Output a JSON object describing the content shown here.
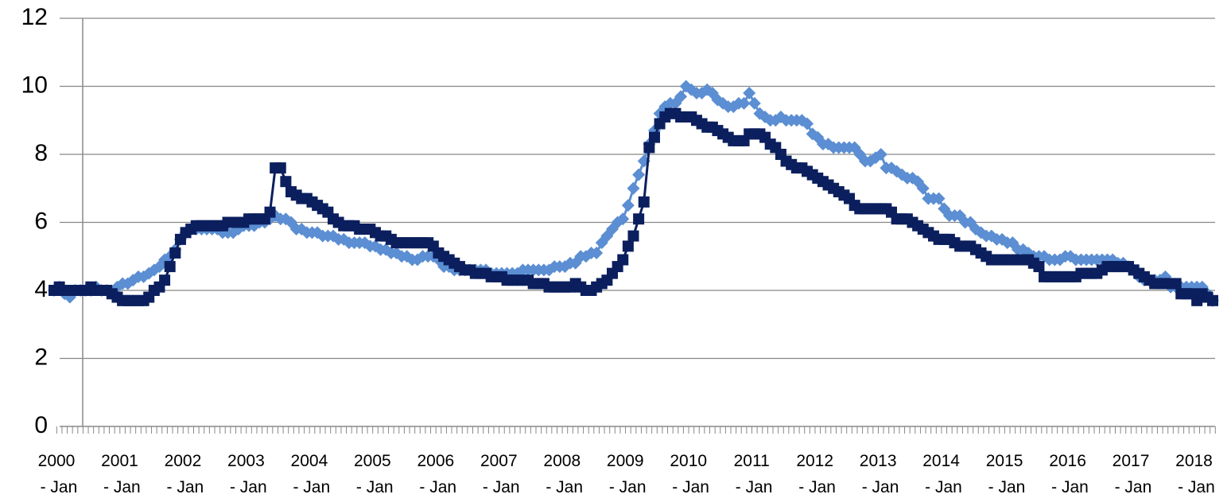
{
  "chart_data": {
    "type": "line",
    "categories": [
      "2000 - Jan",
      null,
      null,
      null,
      null,
      null,
      null,
      null,
      null,
      null,
      null,
      null,
      "2001 - Jan",
      null,
      null,
      null,
      null,
      null,
      null,
      null,
      null,
      null,
      null,
      null,
      "2002 - Jan",
      null,
      null,
      null,
      null,
      null,
      null,
      null,
      null,
      null,
      null,
      null,
      "2003 - Jan",
      null,
      null,
      null,
      null,
      null,
      null,
      null,
      null,
      null,
      null,
      null,
      "2004 - Jan",
      null,
      null,
      null,
      null,
      null,
      null,
      null,
      null,
      null,
      null,
      null,
      "2005 - Jan",
      null,
      null,
      null,
      null,
      null,
      null,
      null,
      null,
      null,
      null,
      null,
      "2006 - Jan",
      null,
      null,
      null,
      null,
      null,
      null,
      null,
      null,
      null,
      null,
      null,
      "2007 - Jan",
      null,
      null,
      null,
      null,
      null,
      null,
      null,
      null,
      null,
      null,
      null,
      "2008 - Jan",
      null,
      null,
      null,
      null,
      null,
      null,
      null,
      null,
      null,
      null,
      null,
      "2009 - Jan",
      null,
      null,
      null,
      null,
      null,
      null,
      null,
      null,
      null,
      null,
      null,
      "2010 - Jan",
      null,
      null,
      null,
      null,
      null,
      null,
      null,
      null,
      null,
      null,
      null,
      "2011 - Jan",
      null,
      null,
      null,
      null,
      null,
      null,
      null,
      null,
      null,
      null,
      null,
      "2012 - Jan",
      null,
      null,
      null,
      null,
      null,
      null,
      null,
      null,
      null,
      null,
      null,
      "2013 - Jan",
      null,
      null,
      null,
      null,
      null,
      null,
      null,
      null,
      null,
      null,
      null,
      "2014 - Jan",
      null,
      null,
      null,
      null,
      null,
      null,
      null,
      null,
      null,
      null,
      null,
      "2015 - Jan",
      null,
      null,
      null,
      null,
      null,
      null,
      null,
      null,
      null,
      null,
      null,
      "2016 - Jan",
      null,
      null,
      null,
      null,
      null,
      null,
      null,
      null,
      null,
      null,
      null,
      "2017 - Jan",
      null,
      null,
      null,
      null,
      null,
      null,
      null,
      null,
      null,
      null,
      null,
      "2018 - Jan",
      null,
      null,
      null,
      null
    ],
    "series": [
      {
        "color": "#5b8ed2",
        "marker": "diamond",
        "values": [
          4.0,
          4.1,
          3.9,
          3.8,
          4.0,
          4.0,
          4.0,
          4.0,
          4.1,
          4.0,
          4.0,
          3.9,
          4.1,
          4.2,
          4.2,
          4.3,
          4.4,
          4.4,
          4.5,
          4.6,
          4.7,
          4.9,
          5.0,
          5.2,
          5.5,
          5.7,
          5.8,
          5.8,
          5.8,
          5.8,
          5.8,
          5.8,
          5.7,
          5.7,
          5.7,
          5.8,
          5.9,
          5.9,
          5.9,
          6.0,
          6.0,
          6.1,
          6.2,
          6.1,
          6.1,
          6.0,
          5.8,
          5.8,
          5.7,
          5.7,
          5.7,
          5.6,
          5.6,
          5.6,
          5.5,
          5.5,
          5.4,
          5.4,
          5.4,
          5.4,
          5.3,
          5.3,
          5.2,
          5.2,
          5.1,
          5.1,
          5.0,
          5.0,
          4.9,
          4.9,
          5.0,
          5.0,
          5.0,
          4.9,
          4.7,
          4.7,
          4.6,
          4.6,
          4.6,
          4.6,
          4.6,
          4.6,
          4.6,
          4.5,
          4.5,
          4.5,
          4.5,
          4.5,
          4.5,
          4.6,
          4.6,
          4.6,
          4.6,
          4.6,
          4.6,
          4.7,
          4.7,
          4.7,
          4.8,
          4.8,
          5.0,
          5.0,
          5.1,
          5.1,
          5.4,
          5.6,
          5.8,
          6.0,
          6.1,
          6.5,
          7.0,
          7.4,
          7.8,
          8.3,
          8.7,
          9.2,
          9.4,
          9.5,
          9.5,
          9.7,
          10.0,
          9.9,
          9.8,
          9.8,
          9.9,
          9.8,
          9.6,
          9.5,
          9.4,
          9.4,
          9.5,
          9.5,
          9.8,
          9.5,
          9.2,
          9.1,
          9.0,
          9.0,
          9.1,
          9.0,
          9.0,
          9.0,
          9.0,
          8.9,
          8.6,
          8.5,
          8.3,
          8.3,
          8.2,
          8.2,
          8.2,
          8.2,
          8.2,
          8.0,
          7.8,
          7.8,
          7.9,
          8.0,
          7.6,
          7.6,
          7.5,
          7.4,
          7.3,
          7.3,
          7.2,
          7.0,
          6.7,
          6.7,
          6.7,
          6.4,
          6.2,
          6.2,
          6.2,
          6.0,
          6.0,
          5.8,
          5.7,
          5.6,
          5.6,
          5.5,
          5.5,
          5.4,
          5.4,
          5.2,
          5.2,
          5.1,
          5.0,
          5.0,
          5.0,
          4.9,
          4.9,
          4.9,
          5.0,
          5.0,
          4.9,
          4.9,
          4.9,
          4.9,
          4.9,
          4.9,
          4.9,
          4.9,
          4.8,
          4.8,
          4.7,
          4.6,
          4.4,
          4.3,
          4.3,
          4.3,
          4.3,
          4.4,
          4.1,
          4.1,
          4.1,
          4.1,
          4.1,
          4.1,
          4.1,
          3.9,
          3.7
        ]
      },
      {
        "color": "#0b1f5e",
        "marker": "square",
        "values": [
          4.0,
          4.1,
          4.0,
          4.0,
          4.0,
          4.0,
          4.0,
          4.1,
          4.0,
          4.0,
          4.0,
          3.9,
          3.8,
          3.7,
          3.7,
          3.7,
          3.7,
          3.7,
          3.8,
          4.0,
          4.1,
          4.3,
          4.7,
          5.1,
          5.5,
          5.7,
          5.8,
          5.9,
          5.9,
          5.9,
          5.9,
          5.9,
          5.9,
          6.0,
          6.0,
          6.0,
          6.0,
          6.1,
          6.1,
          6.1,
          6.1,
          6.3,
          7.6,
          7.6,
          7.2,
          6.9,
          6.8,
          6.7,
          6.7,
          6.6,
          6.5,
          6.4,
          6.3,
          6.1,
          6.0,
          5.9,
          5.9,
          5.9,
          5.8,
          5.8,
          5.8,
          5.7,
          5.6,
          5.6,
          5.5,
          5.4,
          5.4,
          5.4,
          5.4,
          5.4,
          5.4,
          5.4,
          5.3,
          5.1,
          5.0,
          4.9,
          4.8,
          4.7,
          4.6,
          4.6,
          4.5,
          4.5,
          4.5,
          4.4,
          4.4,
          4.4,
          4.3,
          4.3,
          4.3,
          4.3,
          4.3,
          4.2,
          4.2,
          4.2,
          4.1,
          4.1,
          4.1,
          4.1,
          4.1,
          4.2,
          4.1,
          4.0,
          4.0,
          4.1,
          4.2,
          4.3,
          4.5,
          4.7,
          4.9,
          5.3,
          5.6,
          6.1,
          6.6,
          8.2,
          8.5,
          8.9,
          9.1,
          9.2,
          9.2,
          9.1,
          9.1,
          9.1,
          9.0,
          8.9,
          8.8,
          8.8,
          8.7,
          8.6,
          8.5,
          8.4,
          8.4,
          8.4,
          8.6,
          8.6,
          8.6,
          8.5,
          8.3,
          8.2,
          8.0,
          7.8,
          7.7,
          7.6,
          7.6,
          7.5,
          7.4,
          7.3,
          7.2,
          7.1,
          7.0,
          6.9,
          6.8,
          6.7,
          6.5,
          6.4,
          6.4,
          6.4,
          6.4,
          6.4,
          6.4,
          6.3,
          6.1,
          6.1,
          6.1,
          6.0,
          5.9,
          5.8,
          5.7,
          5.6,
          5.5,
          5.5,
          5.5,
          5.4,
          5.3,
          5.3,
          5.3,
          5.2,
          5.1,
          5.0,
          4.9,
          4.9,
          4.9,
          4.9,
          4.9,
          4.9,
          4.9,
          4.9,
          4.8,
          4.7,
          4.4,
          4.4,
          4.4,
          4.4,
          4.4,
          4.4,
          4.4,
          4.5,
          4.5,
          4.5,
          4.5,
          4.6,
          4.7,
          4.7,
          4.7,
          4.7,
          4.7,
          4.6,
          4.5,
          4.4,
          4.3,
          4.2,
          4.2,
          4.2,
          4.2,
          4.2,
          3.9,
          3.9,
          3.9,
          3.7,
          3.9,
          3.8,
          3.7
        ]
      }
    ],
    "ylim": [
      0,
      12
    ],
    "yticks": [
      0,
      2,
      4,
      6,
      8,
      10,
      12
    ],
    "grid": true
  }
}
